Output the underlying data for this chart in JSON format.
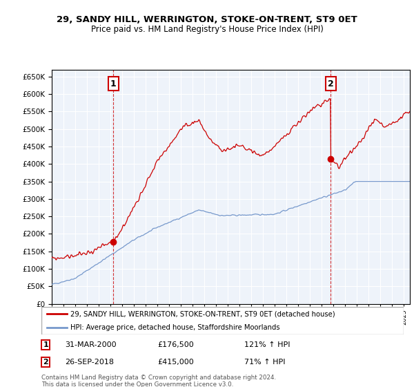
{
  "title": "29, SANDY HILL, WERRINGTON, STOKE-ON-TRENT, ST9 0ET",
  "subtitle": "Price paid vs. HM Land Registry's House Price Index (HPI)",
  "ylim": [
    0,
    670000
  ],
  "yticks": [
    0,
    50000,
    100000,
    150000,
    200000,
    250000,
    300000,
    350000,
    400000,
    450000,
    500000,
    550000,
    600000,
    650000
  ],
  "property_color": "#cc0000",
  "hpi_color": "#7799cc",
  "annotation1_date": "31-MAR-2000",
  "annotation1_price": "£176,500",
  "annotation1_hpi": "121% ↑ HPI",
  "annotation2_date": "26-SEP-2018",
  "annotation2_price": "£415,000",
  "annotation2_hpi": "71% ↑ HPI",
  "legend_property": "29, SANDY HILL, WERRINGTON, STOKE-ON-TRENT, ST9 0ET (detached house)",
  "legend_hpi": "HPI: Average price, detached house, Staffordshire Moorlands",
  "footer": "Contains HM Land Registry data © Crown copyright and database right 2024.\nThis data is licensed under the Open Government Licence v3.0.",
  "sale1_x": 2000.25,
  "sale1_y": 176500,
  "sale2_x": 2018.75,
  "sale2_y": 415000,
  "xlim_start": 1995,
  "xlim_end": 2025.5
}
